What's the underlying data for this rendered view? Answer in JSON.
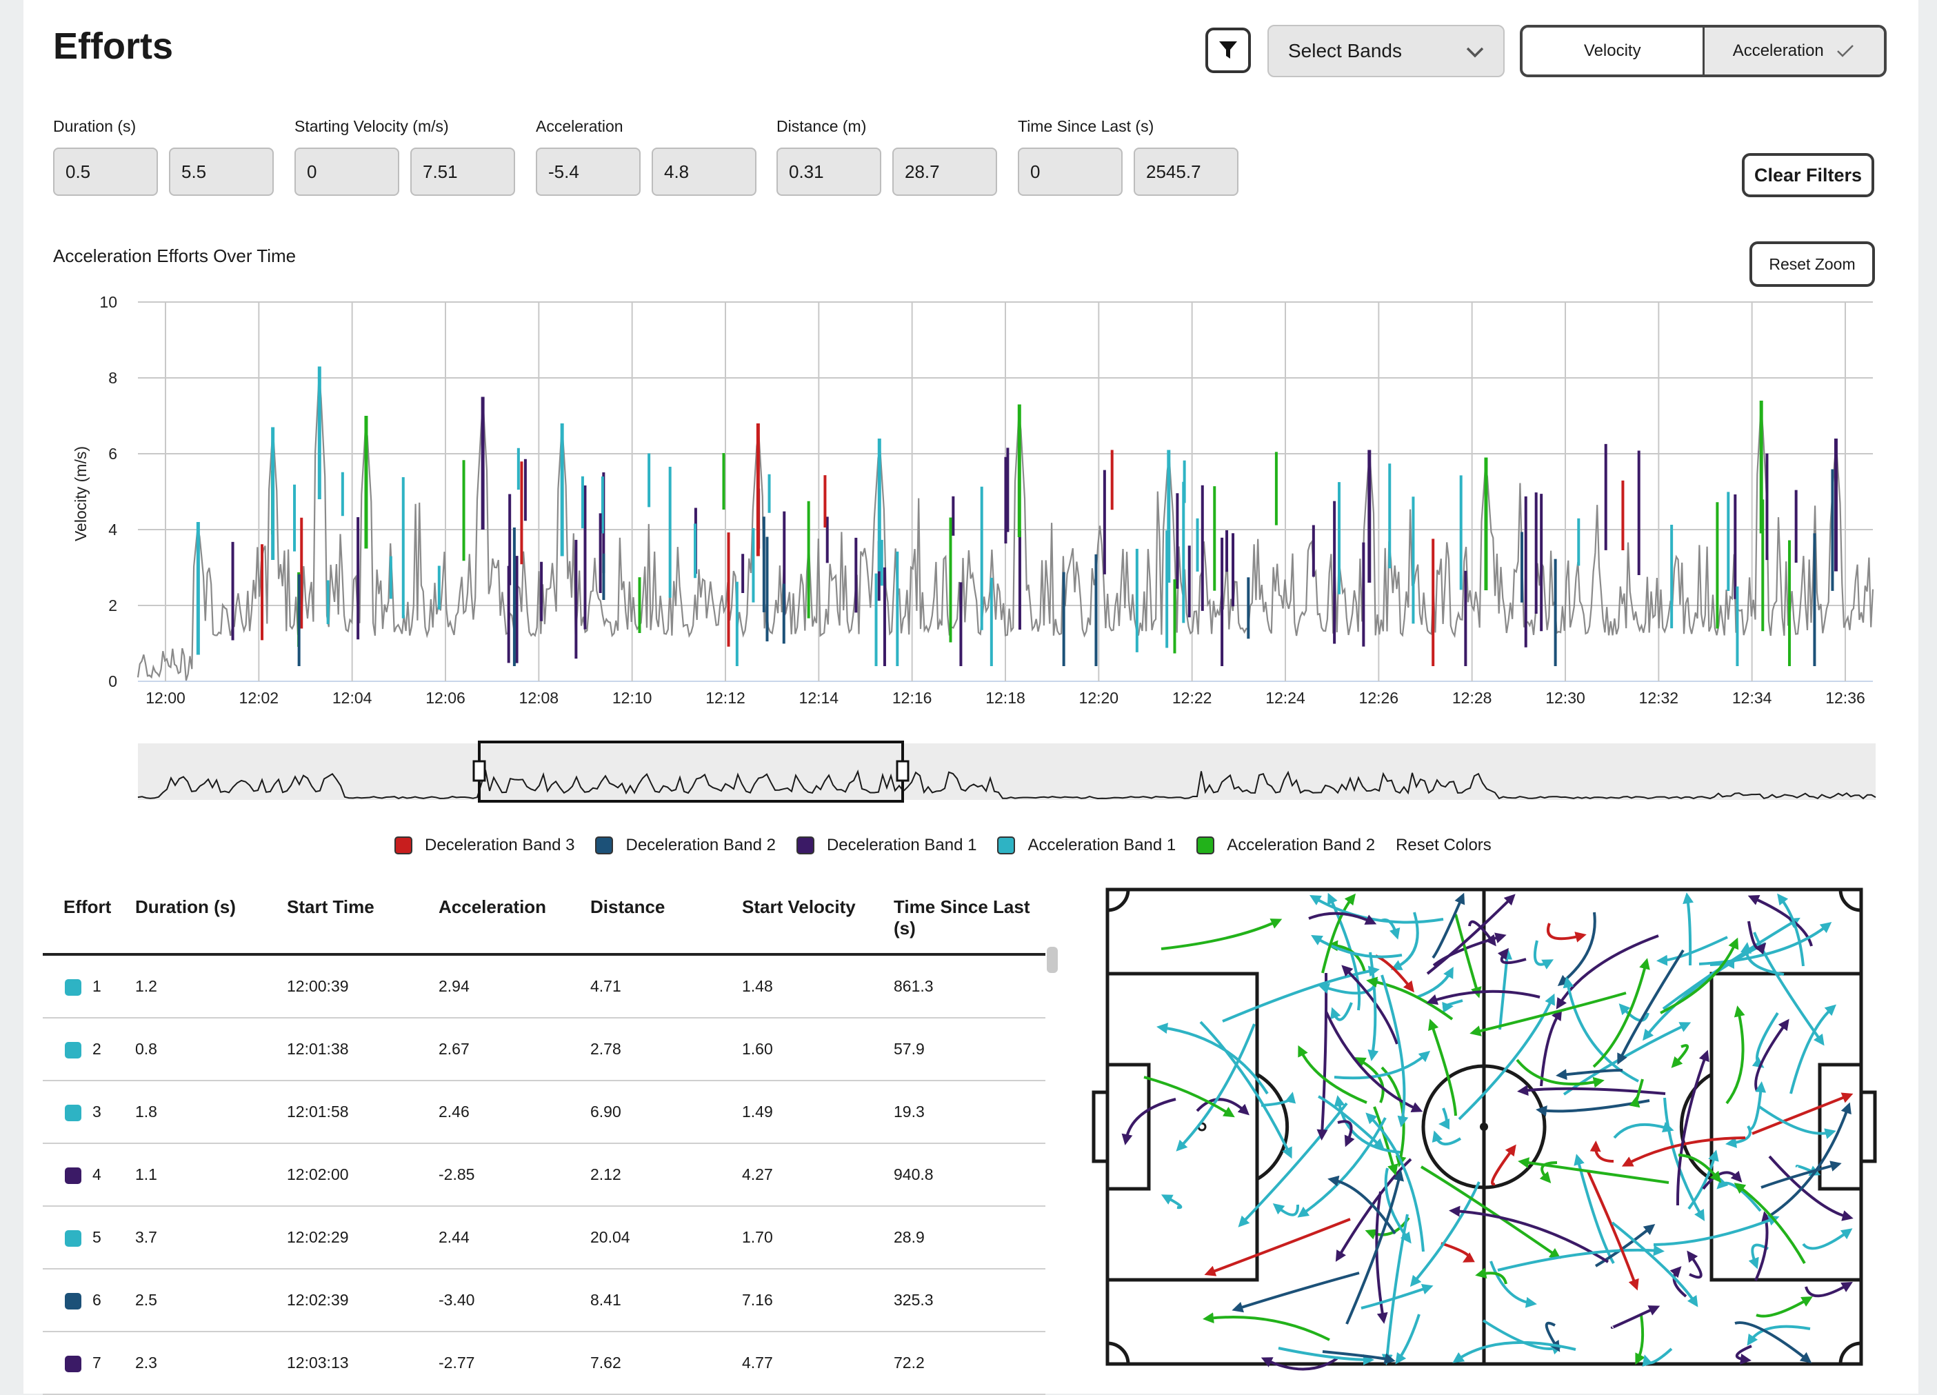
{
  "title": "Efforts",
  "controls": {
    "filter_icon": "filter-icon",
    "select_bands": "Select Bands",
    "toggle": {
      "velocity": "Velocity",
      "acceleration": "Acceleration",
      "selected": "Acceleration"
    }
  },
  "filters": [
    {
      "label": "Duration (s)",
      "min": "0.5",
      "max": "5.5"
    },
    {
      "label": "Starting Velocity (m/s)",
      "min": "0",
      "max": "7.51"
    },
    {
      "label": "Acceleration",
      "min": "-5.4",
      "max": "4.8"
    },
    {
      "label": "Distance (m)",
      "min": "0.31",
      "max": "28.7"
    },
    {
      "label": "Time Since Last (s)",
      "min": "0",
      "max": "2545.7"
    }
  ],
  "clear_filters": "Clear Filters",
  "reset_zoom": "Reset Zoom",
  "chart_data": {
    "type": "line",
    "title": "Acceleration Efforts Over Time",
    "ylabel": "Velocity (m/s)",
    "xlabel": "",
    "ylim": [
      0,
      10
    ],
    "yticks": [
      "0",
      "2",
      "4",
      "6",
      "8",
      "10"
    ],
    "xticks": [
      "12:00",
      "12:02",
      "12:04",
      "12:06",
      "12:08",
      "12:10",
      "12:12",
      "12:14",
      "12:16",
      "12:18",
      "12:20",
      "12:22",
      "12:24",
      "12:26",
      "12:28",
      "12:30",
      "12:32",
      "12:34",
      "12:36"
    ],
    "grid": true,
    "legend_position": "bottom",
    "series": [
      {
        "name": "Deceleration Band 3"
      },
      {
        "name": "Deceleration Band 2"
      },
      {
        "name": "Deceleration Band 1"
      },
      {
        "name": "Acceleration Band 1"
      },
      {
        "name": "Acceleration Band 2"
      }
    ],
    "highlights": [
      {
        "t": 0.7,
        "peak": 4.2,
        "band": "Acceleration Band 1"
      },
      {
        "t": 2.3,
        "peak": 6.7,
        "band": "Acceleration Band 1"
      },
      {
        "t": 3.3,
        "peak": 8.3,
        "band": "Acceleration Band 1"
      },
      {
        "t": 4.3,
        "peak": 7.0,
        "band": "Acceleration Band 2"
      },
      {
        "t": 6.8,
        "peak": 7.5,
        "band": "Deceleration Band 1"
      },
      {
        "t": 8.5,
        "peak": 6.8,
        "band": "Acceleration Band 1"
      },
      {
        "t": 12.7,
        "peak": 6.8,
        "band": "Deceleration Band 3"
      },
      {
        "t": 15.3,
        "peak": 6.4,
        "band": "Acceleration Band 1"
      },
      {
        "t": 18.3,
        "peak": 7.3,
        "band": "Acceleration Band 2"
      },
      {
        "t": 21.5,
        "peak": 6.1,
        "band": "Acceleration Band 1"
      },
      {
        "t": 25.8,
        "peak": 6.1,
        "band": "Deceleration Band 1"
      },
      {
        "t": 28.3,
        "peak": 5.9,
        "band": "Acceleration Band 2"
      },
      {
        "t": 34.2,
        "peak": 7.4,
        "band": "Acceleration Band 2"
      },
      {
        "t": 35.8,
        "peak": 6.4,
        "band": "Deceleration Band 1"
      }
    ]
  },
  "legend": {
    "items": [
      {
        "label": "Deceleration Band 3",
        "color": "#c81e1e"
      },
      {
        "label": "Deceleration Band 2",
        "color": "#1c5178"
      },
      {
        "label": "Deceleration Band 1",
        "color": "#3b1a66"
      },
      {
        "label": "Acceleration Band 1",
        "color": "#2eb3c4"
      },
      {
        "label": "Acceleration Band 2",
        "color": "#22b21a"
      }
    ],
    "reset": "Reset Colors"
  },
  "table": {
    "headers": [
      "Effort",
      "Duration (s)",
      "Start Time",
      "Acceleration",
      "Distance",
      "Start Velocity",
      "Time Since Last (s)"
    ],
    "rows": [
      {
        "n": "1",
        "color": "#2eb3c4",
        "duration": "1.2",
        "start": "12:00:39",
        "accel": "2.94",
        "dist": "4.71",
        "vel": "1.48",
        "since": "861.3"
      },
      {
        "n": "2",
        "color": "#2eb3c4",
        "duration": "0.8",
        "start": "12:01:38",
        "accel": "2.67",
        "dist": "2.78",
        "vel": "1.60",
        "since": "57.9"
      },
      {
        "n": "3",
        "color": "#2eb3c4",
        "duration": "1.8",
        "start": "12:01:58",
        "accel": "2.46",
        "dist": "6.90",
        "vel": "1.49",
        "since": "19.3"
      },
      {
        "n": "4",
        "color": "#3b1a66",
        "duration": "1.1",
        "start": "12:02:00",
        "accel": "-2.85",
        "dist": "2.12",
        "vel": "4.27",
        "since": "940.8"
      },
      {
        "n": "5",
        "color": "#2eb3c4",
        "duration": "3.7",
        "start": "12:02:29",
        "accel": "2.44",
        "dist": "20.04",
        "vel": "1.70",
        "since": "28.9"
      },
      {
        "n": "6",
        "color": "#1c5178",
        "duration": "2.5",
        "start": "12:02:39",
        "accel": "-3.40",
        "dist": "8.41",
        "vel": "7.16",
        "since": "325.3"
      },
      {
        "n": "7",
        "color": "#3b1a66",
        "duration": "2.3",
        "start": "12:03:13",
        "accel": "-2.77",
        "dist": "7.62",
        "vel": "4.77",
        "since": "72.2"
      }
    ]
  }
}
